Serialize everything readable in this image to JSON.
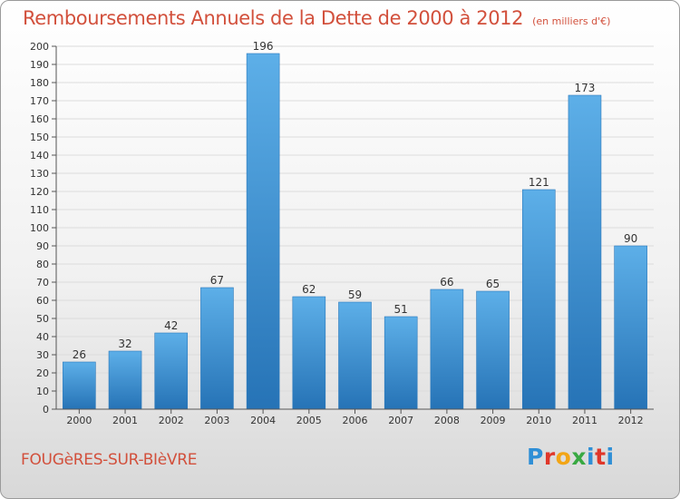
{
  "header": {
    "title": "Remboursements Annuels de la Dette de 2000 à 2012",
    "unit": "(en milliers d'€)"
  },
  "footer": {
    "commune": "FOUGèRES-SUR-BIèVRE",
    "logo": "Proxiti",
    "logo_colors": [
      "#2f8fd6",
      "#e0372a",
      "#f2a516",
      "#39a942",
      "#2f8fd6",
      "#e0372a",
      "#2f8fd6"
    ]
  },
  "chart_data": {
    "type": "bar",
    "title": "Remboursements Annuels de la Dette de 2000 à 2012",
    "xlabel": "",
    "ylabel": "",
    "categories": [
      "2000",
      "2001",
      "2002",
      "2003",
      "2004",
      "2005",
      "2006",
      "2007",
      "2008",
      "2009",
      "2010",
      "2011",
      "2012"
    ],
    "values": [
      26,
      32,
      42,
      67,
      196,
      62,
      59,
      51,
      66,
      65,
      121,
      173,
      90
    ],
    "ylim": [
      0,
      200
    ],
    "ytick_step": 10,
    "grid": true,
    "bar_color_top": "#5dafe8",
    "bar_color_bottom": "#2673b6"
  }
}
